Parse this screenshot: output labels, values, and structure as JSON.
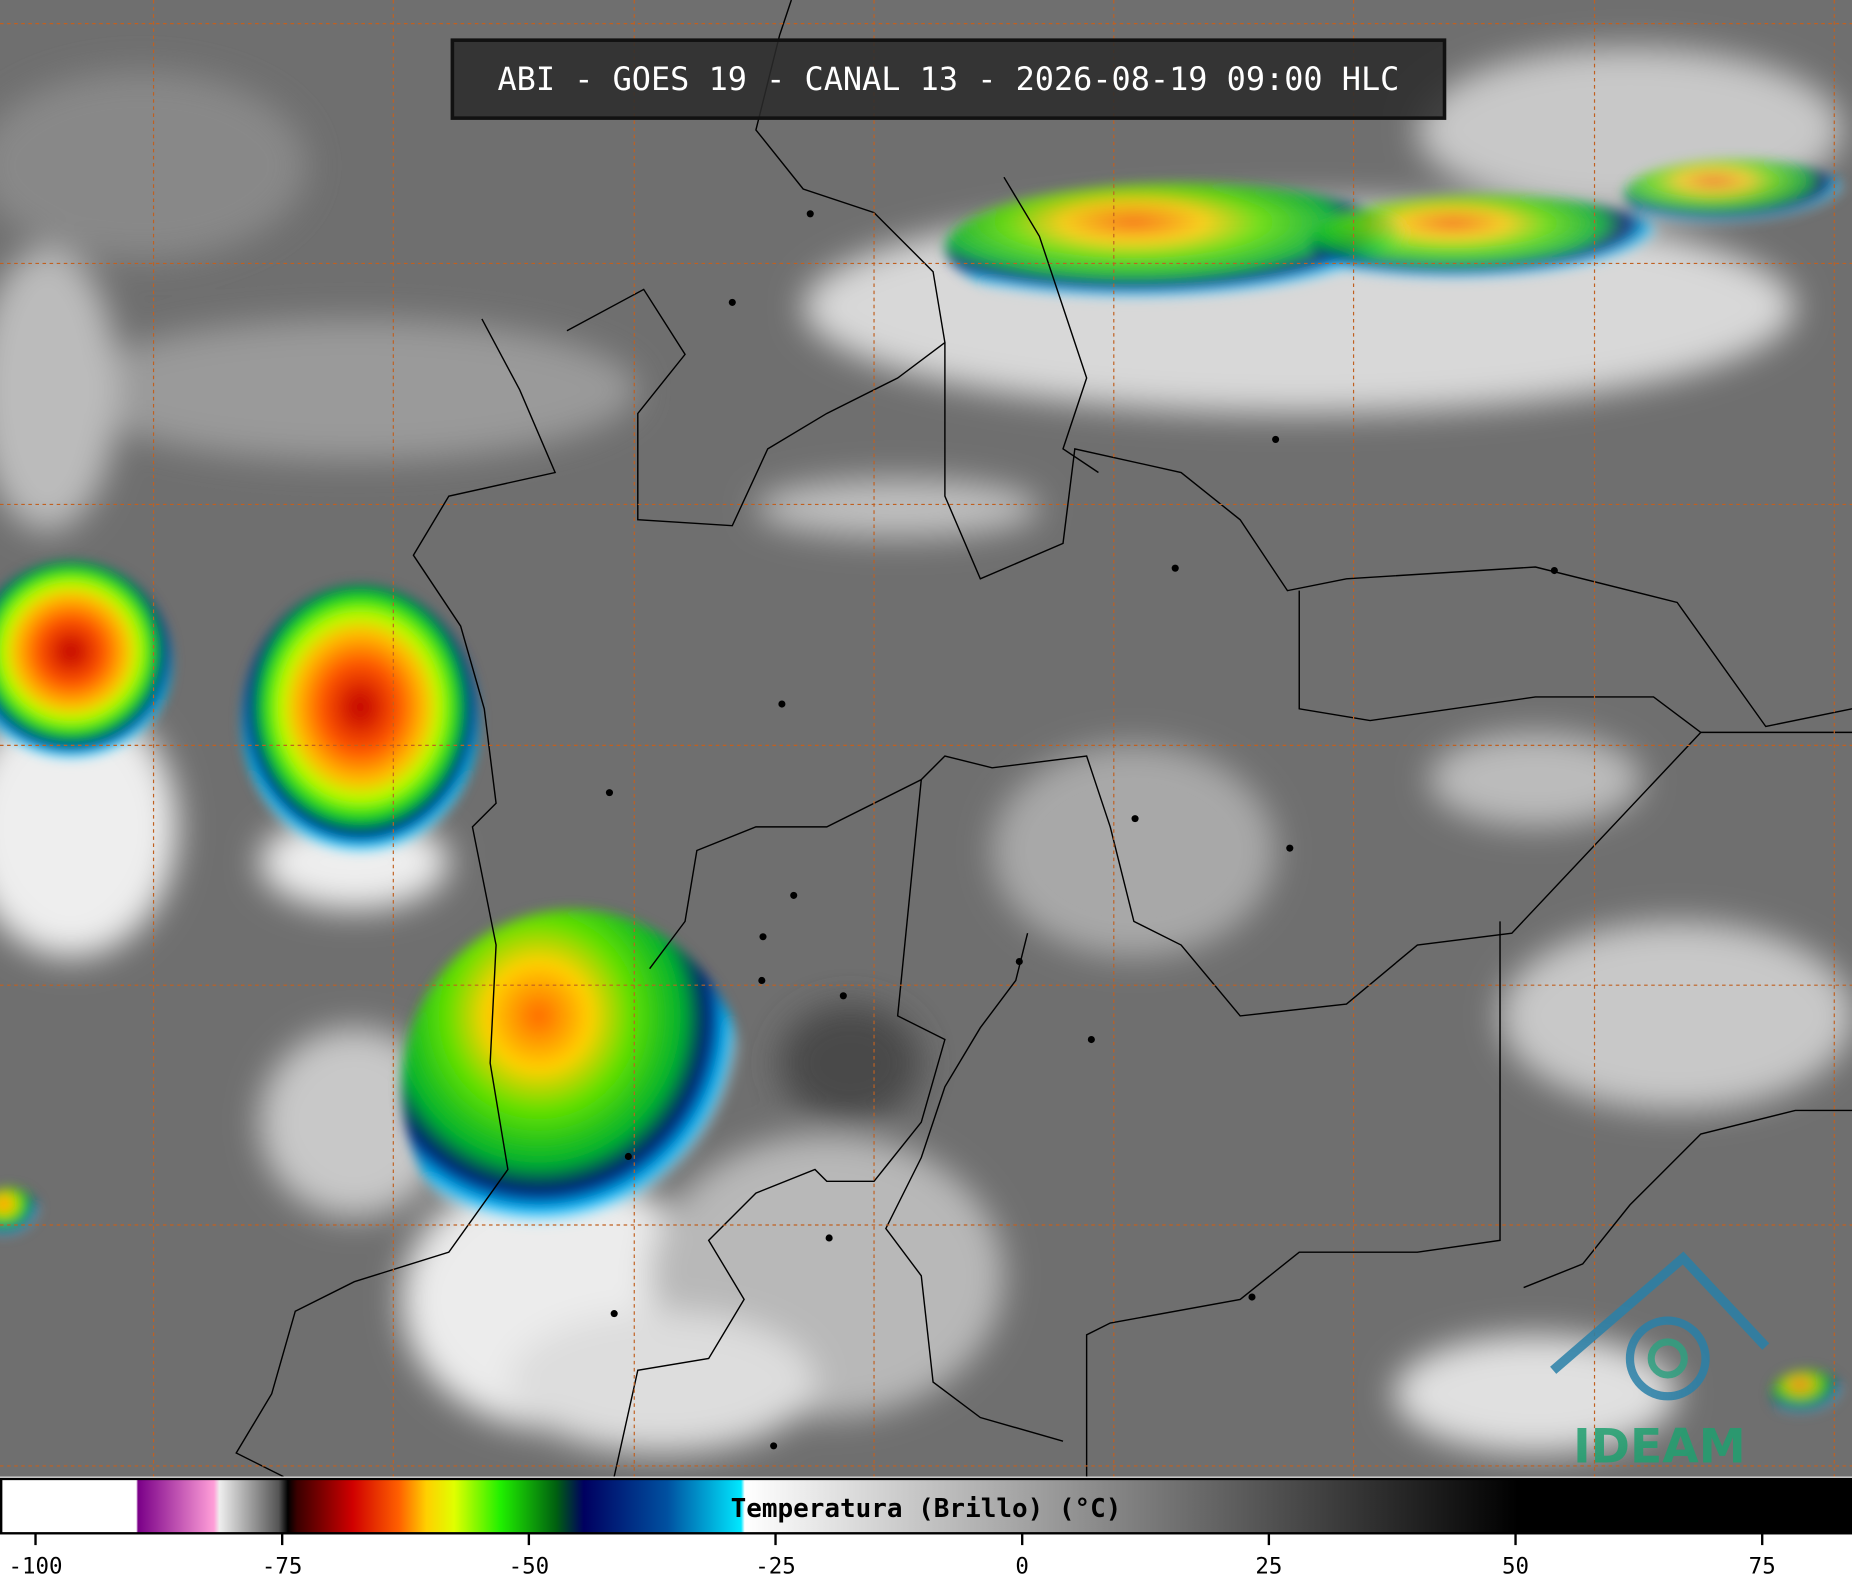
{
  "header": {
    "title": "ABI - GOES 19 - CANAL 13 - 2026-08-19 09:00 HLC"
  },
  "colorbar": {
    "label": "Temperatura (Brillo) (°C)",
    "range": [
      -103.6,
      84.1
    ],
    "ticks": [
      -100,
      -75,
      -50,
      -25,
      0,
      25,
      50,
      75
    ]
  },
  "logo": {
    "text": "IDEAM"
  }
}
